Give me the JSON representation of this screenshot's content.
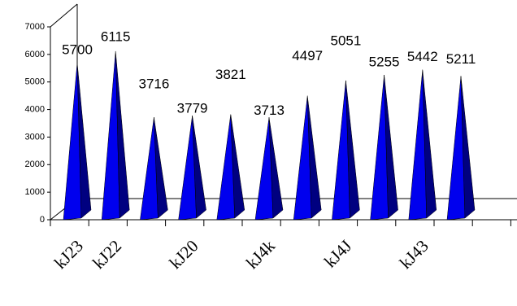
{
  "chart_data": {
    "type": "bar",
    "shape": "pyramid",
    "categories": [
      "kJ23",
      "kJ22",
      null,
      "kJ20",
      null,
      "kJ4k",
      null,
      "kJ4J",
      null,
      "kJ43",
      null
    ],
    "values": [
      5700,
      6115,
      3716,
      3779,
      3821,
      3713,
      4497,
      5051,
      5255,
      5442,
      5211
    ],
    "color": "#0000ee",
    "side_color": "#000080",
    "ylim": [
      0,
      7000
    ],
    "yticks": [
      0,
      1000,
      2000,
      3000,
      4000,
      5000,
      6000,
      7000
    ]
  }
}
